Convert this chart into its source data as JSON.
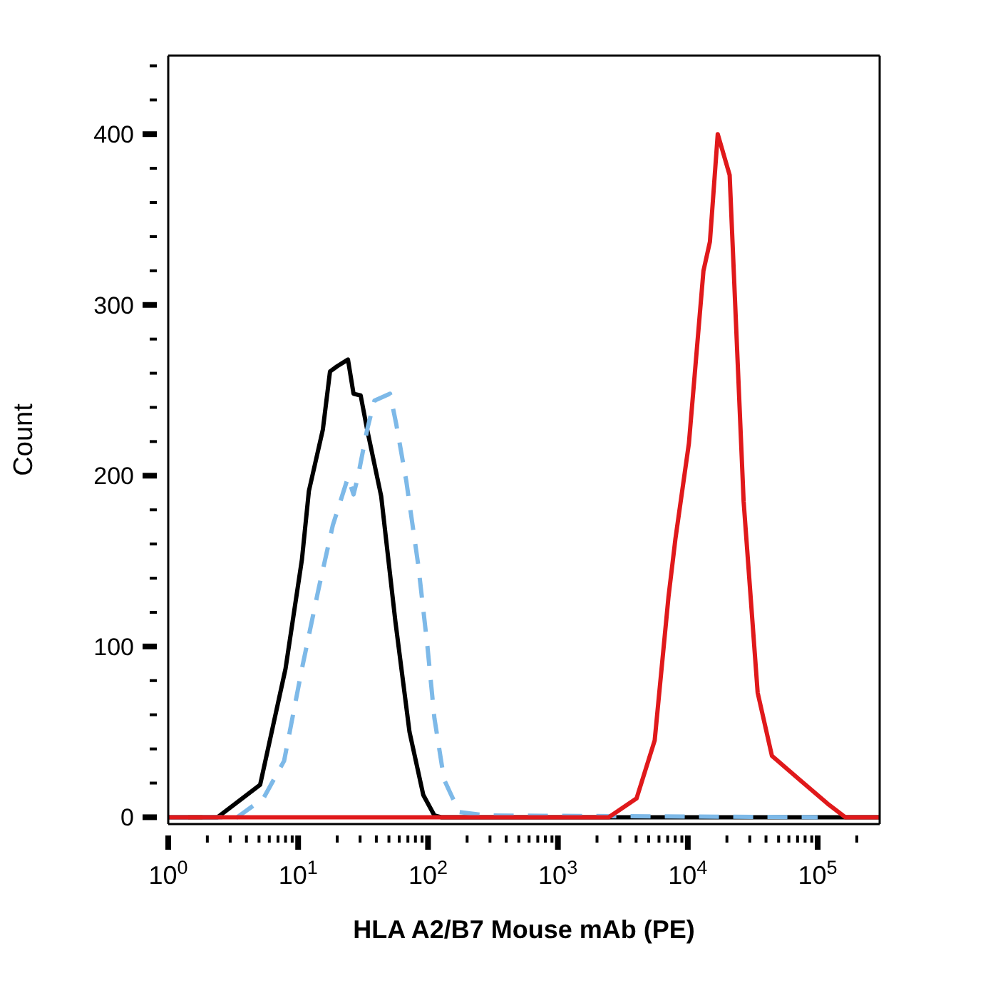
{
  "chart_data": {
    "type": "line",
    "xlabel": "HLA A2/B7 Mouse mAb (PE)",
    "ylabel": "Count",
    "log": "x",
    "marker": "none",
    "xlim": [
      1,
      300000
    ],
    "ylim": [
      -4,
      446
    ],
    "xticks": [
      {
        "value": 1,
        "label": "10$^{0}$"
      },
      {
        "value": 2,
        "label": null
      },
      {
        "value": 3,
        "label": null
      },
      {
        "value": 4,
        "label": null
      },
      {
        "value": 5,
        "label": null
      },
      {
        "value": 6,
        "label": null
      },
      {
        "value": 7,
        "label": null
      },
      {
        "value": 8,
        "label": null
      },
      {
        "value": 9,
        "label": null
      },
      {
        "value": 10,
        "label": "10$^{1}$"
      },
      {
        "value": 20,
        "label": null
      },
      {
        "value": 30,
        "label": null
      },
      {
        "value": 40,
        "label": null
      },
      {
        "value": 50,
        "label": null
      },
      {
        "value": 60,
        "label": null
      },
      {
        "value": 70,
        "label": null
      },
      {
        "value": 80,
        "label": null
      },
      {
        "value": 90,
        "label": null
      },
      {
        "value": 100,
        "label": "10$^{2}$"
      },
      {
        "value": 200,
        "label": null
      },
      {
        "value": 300,
        "label": null
      },
      {
        "value": 400,
        "label": null
      },
      {
        "value": 500,
        "label": null
      },
      {
        "value": 600,
        "label": null
      },
      {
        "value": 700,
        "label": null
      },
      {
        "value": 800,
        "label": null
      },
      {
        "value": 900,
        "label": null
      },
      {
        "value": 1000,
        "label": "10$^{3}$"
      },
      {
        "value": 2000,
        "label": null
      },
      {
        "value": 3000,
        "label": null
      },
      {
        "value": 4000,
        "label": null
      },
      {
        "value": 5000,
        "label": null
      },
      {
        "value": 6000,
        "label": null
      },
      {
        "value": 7000,
        "label": null
      },
      {
        "value": 8000,
        "label": null
      },
      {
        "value": 9000,
        "label": null
      },
      {
        "value": 10000,
        "label": "10$^{4}$"
      },
      {
        "value": 20000,
        "label": null
      },
      {
        "value": 30000,
        "label": null
      },
      {
        "value": 40000,
        "label": null
      },
      {
        "value": 50000,
        "label": null
      },
      {
        "value": 60000,
        "label": null
      },
      {
        "value": 70000,
        "label": null
      },
      {
        "value": 80000,
        "label": null
      },
      {
        "value": 90000,
        "label": null
      },
      {
        "value": 100000,
        "label": "10$^{5}$"
      },
      {
        "value": 200000,
        "label": null
      }
    ],
    "yticks": [
      0,
      {
        "value": 20,
        "label": null
      },
      {
        "value": 40,
        "label": null
      },
      {
        "value": 60,
        "label": null
      },
      {
        "value": 80,
        "label": null
      },
      100,
      {
        "value": 120,
        "label": null
      },
      {
        "value": 140,
        "label": null
      },
      {
        "value": 160,
        "label": null
      },
      {
        "value": 180,
        "label": null
      },
      200,
      {
        "value": 220,
        "label": null
      },
      {
        "value": 240,
        "label": null
      },
      {
        "value": 260,
        "label": null
      },
      {
        "value": 280,
        "label": null
      },
      300,
      {
        "value": 320,
        "label": null
      },
      {
        "value": 340,
        "label": null
      },
      {
        "value": 360,
        "label": null
      },
      {
        "value": 380,
        "label": null
      },
      400,
      {
        "value": 420,
        "label": null
      },
      {
        "value": 440,
        "label": null
      }
    ],
    "series": [
      {
        "color": "#000000",
        "line_style": "solid",
        "x": [
          1,
          2.4,
          5.1,
          8,
          10.7,
          12.1,
          15.5,
          17.6,
          19.9,
          24.2,
          26.7,
          30.3,
          34,
          43.6,
          56,
          72,
          92,
          112,
          126,
          300000
        ],
        "values": [
          0,
          0,
          19,
          87,
          151,
          191,
          227,
          261,
          264,
          268,
          248,
          247,
          227,
          188,
          115,
          50,
          13,
          1,
          0,
          0
        ]
      },
      {
        "color": "#7db9e8",
        "line_style": "dashed",
        "x": [
          1,
          3.4,
          5.4,
          7.8,
          10.7,
          14.4,
          18.5,
          24.2,
          26.7,
          28.8,
          34,
          38.7,
          51,
          57,
          68,
          84,
          99,
          112,
          133,
          174,
          288,
          100000
        ],
        "values": [
          0,
          0,
          11,
          33,
          87,
          134,
          171,
          199,
          189,
          199,
          227,
          244,
          248,
          230,
          197,
          148,
          100,
          58,
          22,
          3,
          1,
          0
        ]
      },
      {
        "color": "#e0191b",
        "line_style": "solid",
        "x": [
          1,
          2460,
          4030,
          5560,
          7100,
          8030,
          10200,
          13200,
          14800,
          17000,
          21000,
          26900,
          34500,
          44400,
          72500,
          119000,
          163000,
          300000
        ],
        "values": [
          0,
          0,
          11,
          45,
          129,
          163,
          219,
          320,
          337,
          400,
          376,
          185,
          73,
          36,
          22,
          8,
          0,
          0
        ]
      }
    ]
  }
}
